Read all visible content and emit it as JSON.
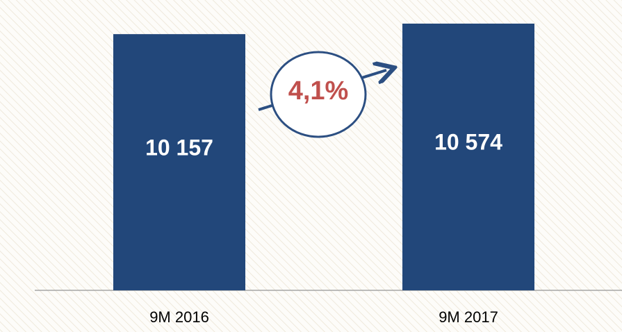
{
  "chart_data": {
    "type": "bar",
    "categories": [
      "9M 2016",
      "9M 2017"
    ],
    "values": [
      10157,
      10574
    ],
    "value_labels": [
      "10 157",
      "10 574"
    ],
    "color": "#22477a",
    "annotation": "4,1%"
  }
}
